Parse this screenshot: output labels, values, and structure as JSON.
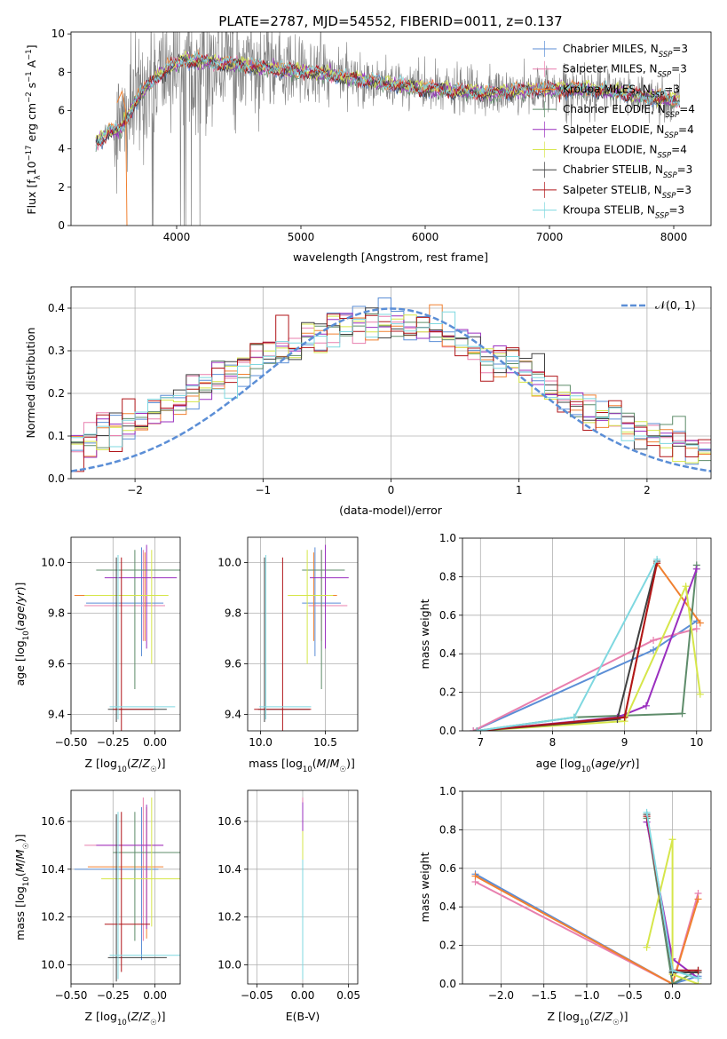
{
  "figure": {
    "title": "PLATE=2787, MJD=54552, FIBERID=0011, z=0.137"
  },
  "colors": {
    "Chabrier MILES": "#5b8ed6",
    "Salpeter MILES": "#e87fae",
    "Kroupa MILES": "#f08030",
    "Chabrier ELODIE": "#5e8c6a",
    "Salpeter ELODIE": "#9a2fbf",
    "Kroupa ELODIE": "#d6e64a",
    "Chabrier STELIB": "#404040",
    "Salpeter STELIB": "#b0161a",
    "Kroupa STELIB": "#7fd8e0",
    "data": "#7f7f7f",
    "gaussian": "#5b8ed6"
  },
  "chart_data": [
    {
      "id": "spectrum",
      "type": "line",
      "xlabel": "wavelength [Angstrom, rest frame]",
      "ylabel": "Flux [f_λ10^-17 erg cm^-2 s^-1 A^-1]",
      "xlim": [
        3150,
        8300
      ],
      "ylim": [
        0,
        10.1
      ],
      "xticks": [
        4000,
        5000,
        6000,
        7000,
        8000
      ],
      "yticks": [
        0,
        2,
        4,
        6,
        8,
        10
      ],
      "grid": false,
      "legend_position": "top-right",
      "legend": [
        {
          "name": "Chabrier MILES",
          "nssp": "3"
        },
        {
          "name": "Salpeter MILES",
          "nssp": "3"
        },
        {
          "name": "Kroupa MILES",
          "nssp": "3"
        },
        {
          "name": "Chabrier ELODIE",
          "nssp": "4"
        },
        {
          "name": "Salpeter ELODIE",
          "nssp": "4"
        },
        {
          "name": "Kroupa ELODIE",
          "nssp": "4"
        },
        {
          "name": "Chabrier STELIB",
          "nssp": "3"
        },
        {
          "name": "Salpeter STELIB",
          "nssp": "3"
        },
        {
          "name": "Kroupa STELIB",
          "nssp": "3"
        }
      ],
      "model_continuum": {
        "x": [
          3350,
          3450,
          3550,
          3650,
          3750,
          3850,
          3950,
          4050,
          4150,
          4300,
          4500,
          4700,
          4900,
          5100,
          5300,
          5500,
          5700,
          5900,
          6100,
          6300,
          6500,
          6700,
          6900,
          7100,
          7300,
          7500,
          7700,
          7900,
          8050
        ],
        "y": [
          4.3,
          4.9,
          5.0,
          6.2,
          7.2,
          7.8,
          8.3,
          8.6,
          8.6,
          8.5,
          8.4,
          8.2,
          8.1,
          8.0,
          7.8,
          7.6,
          7.4,
          7.2,
          7.1,
          7.0,
          6.9,
          7.0,
          7.1,
          7.1,
          7.1,
          7.0,
          6.8,
          6.6,
          6.5
        ]
      }
    },
    {
      "id": "residuals",
      "type": "line",
      "xlabel": "(data-model)/error",
      "ylabel": "Normed distribution",
      "xlim": [
        -2.5,
        2.5
      ],
      "ylim": [
        0,
        0.45
      ],
      "xticks": [
        -2,
        -1,
        0,
        1,
        2
      ],
      "yticks": [
        0.0,
        0.1,
        0.2,
        0.3,
        0.4
      ],
      "grid": true,
      "legend_position": "top-right",
      "gaussian_label": "𝒩(0, 1)",
      "bin_width": 0.1
    },
    {
      "id": "age_vs_Z",
      "type": "scatter",
      "xlabel": "Z [log10(Z/Z☉)]",
      "ylabel": "age  [log10(age/yr)]",
      "xlim": [
        -0.5,
        0.15
      ],
      "ylim": [
        9.335,
        10.1
      ],
      "xticks": [
        -0.5,
        -0.25,
        0.0
      ],
      "xticklabels": [
        "−0.50",
        "−0.25",
        "0.00"
      ],
      "yticks": [
        9.4,
        9.6,
        9.8,
        10.0
      ],
      "points": [
        {
          "model": "Chabrier MILES",
          "x": -0.08,
          "xerr": [
            0.33,
            0.13
          ],
          "y": 9.84,
          "yerr": [
            0.21,
            0.22
          ]
        },
        {
          "model": "Salpeter MILES",
          "x": -0.07,
          "xerr": [
            0.35,
            0.13
          ],
          "y": 9.83,
          "yerr": [
            0.14,
            0.22
          ]
        },
        {
          "model": "Kroupa MILES",
          "x": -0.06,
          "xerr": [
            0.42,
            0.1
          ],
          "y": 9.87,
          "yerr": [
            0.18,
            0.17
          ]
        },
        {
          "model": "Chabrier ELODIE",
          "x": -0.12,
          "xerr": [
            0.23,
            0.3
          ],
          "y": 9.97,
          "yerr": [
            0.47,
            0.08
          ]
        },
        {
          "model": "Salpeter ELODIE",
          "x": -0.05,
          "xerr": [
            0.25,
            0.18
          ],
          "y": 9.94,
          "yerr": [
            0.28,
            0.13
          ]
        },
        {
          "model": "Kroupa ELODIE",
          "x": -0.02,
          "xerr": [
            0.4,
            0.1
          ],
          "y": 9.87,
          "yerr": [
            0.27,
            0.18
          ]
        },
        {
          "model": "Chabrier STELIB",
          "x": -0.23,
          "xerr": [
            0.05,
            0.3
          ],
          "y": 9.42,
          "yerr": [
            0.05,
            0.6
          ]
        },
        {
          "model": "Salpeter STELIB",
          "x": -0.2,
          "xerr": [
            0.05,
            0.19
          ],
          "y": 9.42,
          "yerr": [
            0.2,
            0.6
          ]
        },
        {
          "model": "Kroupa STELIB",
          "x": -0.22,
          "xerr": [
            0.05,
            0.34
          ],
          "y": 9.43,
          "yerr": [
            0.05,
            0.6
          ]
        }
      ]
    },
    {
      "id": "age_vs_mass",
      "type": "scatter",
      "xlabel": "mass [log10(M/M☉)]",
      "ylabel": "",
      "xlim": [
        9.9,
        10.75
      ],
      "ylim": [
        9.335,
        10.1
      ],
      "xticks": [
        10.0,
        10.5
      ],
      "yticks": [
        9.4,
        9.6,
        9.8,
        10.0
      ],
      "points": [
        {
          "model": "Chabrier MILES",
          "x": 10.42,
          "xerr": [
            0.1,
            0.2
          ],
          "y": 9.84,
          "yerr": [
            0.21,
            0.22
          ]
        },
        {
          "model": "Salpeter MILES",
          "x": 10.47,
          "xerr": [
            0.1,
            0.2
          ],
          "y": 9.83,
          "yerr": [
            0.14,
            0.22
          ]
        },
        {
          "model": "Kroupa MILES",
          "x": 10.41,
          "xerr": [
            0.18,
            0.18
          ],
          "y": 9.87,
          "yerr": [
            0.18,
            0.17
          ]
        },
        {
          "model": "Chabrier ELODIE",
          "x": 10.47,
          "xerr": [
            0.15,
            0.18
          ],
          "y": 9.97,
          "yerr": [
            0.47,
            0.08
          ]
        },
        {
          "model": "Salpeter ELODIE",
          "x": 10.5,
          "xerr": [
            0.12,
            0.18
          ],
          "y": 9.94,
          "yerr": [
            0.28,
            0.13
          ]
        },
        {
          "model": "Kroupa ELODIE",
          "x": 10.36,
          "xerr": [
            0.15,
            0.2
          ],
          "y": 9.87,
          "yerr": [
            0.27,
            0.18
          ]
        },
        {
          "model": "Chabrier STELIB",
          "x": 10.03,
          "xerr": [
            0.05,
            0.35
          ],
          "y": 9.42,
          "yerr": [
            0.05,
            0.6
          ]
        },
        {
          "model": "Salpeter STELIB",
          "x": 10.17,
          "xerr": [
            0.22,
            0.22
          ],
          "y": 9.42,
          "yerr": [
            0.2,
            0.6
          ]
        },
        {
          "model": "Kroupa STELIB",
          "x": 10.04,
          "xerr": [
            0.05,
            0.35
          ],
          "y": 9.43,
          "yerr": [
            0.05,
            0.6
          ]
        }
      ]
    },
    {
      "id": "weight_vs_age",
      "type": "line",
      "xlabel": "age  [log10(age/yr)]",
      "ylabel": "mass weight",
      "xlim": [
        6.75,
        10.2
      ],
      "ylim": [
        0,
        1.0
      ],
      "xticks": [
        7,
        8,
        9,
        10
      ],
      "yticks": [
        0.0,
        0.2,
        0.4,
        0.6,
        0.8,
        1.0
      ],
      "grid": true,
      "series": [
        {
          "model": "Chabrier MILES",
          "x": [
            6.9,
            9.4,
            10.0
          ],
          "y": [
            0.0,
            0.42,
            0.57
          ]
        },
        {
          "model": "Salpeter MILES",
          "x": [
            6.9,
            9.4,
            10.0
          ],
          "y": [
            0.0,
            0.47,
            0.53
          ]
        },
        {
          "model": "Kroupa MILES",
          "x": [
            6.95,
            9.0,
            9.45,
            10.05
          ],
          "y": [
            0.0,
            0.07,
            0.87,
            0.56
          ]
        },
        {
          "model": "Chabrier ELODIE",
          "x": [
            6.95,
            8.3,
            9.8,
            10.0
          ],
          "y": [
            0.0,
            0.07,
            0.09,
            0.86
          ]
        },
        {
          "model": "Salpeter ELODIE",
          "x": [
            6.95,
            8.9,
            9.3,
            10.0
          ],
          "y": [
            0.0,
            0.07,
            0.13,
            0.84
          ]
        },
        {
          "model": "Kroupa ELODIE",
          "x": [
            6.95,
            9.0,
            9.85,
            10.05
          ],
          "y": [
            0.0,
            0.05,
            0.75,
            0.19
          ]
        },
        {
          "model": "Chabrier STELIB",
          "x": [
            6.95,
            8.9,
            9.45
          ],
          "y": [
            0.0,
            0.06,
            0.88
          ]
        },
        {
          "model": "Salpeter STELIB",
          "x": [
            6.95,
            9.0,
            9.45
          ],
          "y": [
            0.0,
            0.07,
            0.87
          ]
        },
        {
          "model": "Kroupa STELIB",
          "x": [
            6.95,
            8.3,
            9.45
          ],
          "y": [
            0.0,
            0.07,
            0.89
          ]
        }
      ]
    },
    {
      "id": "mass_vs_Z",
      "type": "scatter",
      "xlabel": "Z [log10(Z/Z☉)]",
      "ylabel": "mass [log10(M/M☉)]",
      "xlim": [
        -0.5,
        0.15
      ],
      "ylim": [
        9.92,
        10.73
      ],
      "xticks": [
        -0.5,
        -0.25,
        0.0
      ],
      "xticklabels": [
        "−0.50",
        "−0.25",
        "0.00"
      ],
      "yticks": [
        10.0,
        10.2,
        10.4,
        10.6
      ],
      "points": [
        {
          "model": "Chabrier MILES",
          "x": -0.08,
          "xerr": [
            0.4,
            0.1
          ],
          "y": 10.4,
          "yerr": [
            0.38,
            0.26
          ]
        },
        {
          "model": "Salpeter MILES",
          "x": -0.07,
          "xerr": [
            0.35,
            0.12
          ],
          "y": 10.5,
          "yerr": [
            0.4,
            0.2
          ]
        },
        {
          "model": "Kroupa MILES",
          "x": -0.05,
          "xerr": [
            0.35,
            0.1
          ],
          "y": 10.41,
          "yerr": [
            0.3,
            0.25
          ]
        },
        {
          "model": "Chabrier ELODIE",
          "x": -0.12,
          "xerr": [
            0.13,
            0.3
          ],
          "y": 10.47,
          "yerr": [
            0.37,
            0.17
          ]
        },
        {
          "model": "Salpeter ELODIE",
          "x": -0.05,
          "xerr": [
            0.3,
            0.1
          ],
          "y": 10.5,
          "yerr": [
            0.35,
            0.17
          ]
        },
        {
          "model": "Kroupa ELODIE",
          "x": -0.02,
          "xerr": [
            0.3,
            0.18
          ],
          "y": 10.36,
          "yerr": [
            0.2,
            0.34
          ]
        },
        {
          "model": "Chabrier STELIB",
          "x": -0.23,
          "xerr": [
            0.05,
            0.3
          ],
          "y": 10.03,
          "yerr": [
            0.1,
            0.6
          ]
        },
        {
          "model": "Salpeter STELIB",
          "x": -0.2,
          "xerr": [
            0.1,
            0.17
          ],
          "y": 10.17,
          "yerr": [
            0.2,
            0.47
          ]
        },
        {
          "model": "Kroupa STELIB",
          "x": -0.22,
          "xerr": [
            0.05,
            0.38
          ],
          "y": 10.04,
          "yerr": [
            0.1,
            0.6
          ]
        }
      ]
    },
    {
      "id": "mass_vs_ebv",
      "type": "scatter",
      "xlabel": "E(B-V)",
      "ylabel": "",
      "xlim": [
        -0.06,
        0.06
      ],
      "ylim": [
        9.92,
        10.73
      ],
      "xticks": [
        -0.05,
        0.0,
        0.05
      ],
      "xticklabels": [
        "−0.05",
        "0.00",
        "0.05"
      ],
      "yticks": [
        10.0,
        10.2,
        10.4,
        10.6
      ],
      "points": [
        {
          "model": "Chabrier MILES",
          "x": 0.0,
          "xerr": [
            0,
            0
          ],
          "y": 10.4,
          "yerr": [
            0.3,
            0.2
          ]
        },
        {
          "model": "Salpeter MILES",
          "x": 0.0,
          "xerr": [
            0,
            0
          ],
          "y": 10.5,
          "yerr": [
            0.2,
            0.2
          ]
        },
        {
          "model": "Kroupa MILES",
          "x": 0.0,
          "xerr": [
            0,
            0
          ],
          "y": 10.41,
          "yerr": [
            0.2,
            0.15
          ]
        },
        {
          "model": "Chabrier ELODIE",
          "x": 0.0,
          "xerr": [
            0,
            0
          ],
          "y": 10.47,
          "yerr": [
            0.37,
            0.2
          ]
        },
        {
          "model": "Salpeter ELODIE",
          "x": 0.0,
          "xerr": [
            0,
            0
          ],
          "y": 10.5,
          "yerr": [
            0.1,
            0.18
          ]
        },
        {
          "model": "Kroupa ELODIE",
          "x": 0.0,
          "xerr": [
            0,
            0
          ],
          "y": 10.36,
          "yerr": [
            0.2,
            0.2
          ]
        },
        {
          "model": "Chabrier STELIB",
          "x": 0.0,
          "xerr": [
            0,
            0
          ],
          "y": 10.03,
          "yerr": [
            0.05,
            0.1
          ]
        },
        {
          "model": "Salpeter STELIB",
          "x": 0.0,
          "xerr": [
            0,
            0
          ],
          "y": 10.17,
          "yerr": [
            0.05,
            0.15
          ]
        },
        {
          "model": "Kroupa STELIB",
          "x": 0.0,
          "xerr": [
            0,
            0
          ],
          "y": 10.04,
          "yerr": [
            0.1,
            0.4
          ]
        }
      ]
    },
    {
      "id": "weight_vs_Z",
      "type": "line",
      "xlabel": "Z [log10(Z/Z☉)]",
      "ylabel": "mass weight",
      "xlim": [
        -2.45,
        0.45
      ],
      "ylim": [
        0,
        1.0
      ],
      "xticks": [
        -2.0,
        -1.5,
        -1.0,
        -0.5,
        0.0
      ],
      "xticklabels": [
        "−2.0",
        "−1.5",
        "−1.0",
        "−0.5",
        "0.0"
      ],
      "yticks": [
        0.0,
        0.2,
        0.4,
        0.6,
        0.8,
        1.0
      ],
      "grid": true,
      "series": [
        {
          "model": "Chabrier MILES",
          "x": [
            -2.3,
            0.0,
            0.3
          ],
          "y": [
            0.57,
            0.0,
            0.04
          ]
        },
        {
          "model": "Salpeter MILES",
          "x": [
            -2.3,
            0.0,
            0.3
          ],
          "y": [
            0.53,
            0.0,
            0.47
          ]
        },
        {
          "model": "Kroupa MILES",
          "x": [
            -2.3,
            0.0,
            0.3
          ],
          "y": [
            0.56,
            0.0,
            0.44
          ]
        },
        {
          "model": "Chabrier ELODIE",
          "x": [
            -0.3,
            0.0,
            0.3
          ],
          "y": [
            0.86,
            0.0,
            0.07
          ]
        },
        {
          "model": "Salpeter ELODIE",
          "x": [
            -0.3,
            0.0,
            0.3
          ],
          "y": [
            0.84,
            0.13,
            0.03
          ]
        },
        {
          "model": "Kroupa ELODIE",
          "x": [
            -0.3,
            0.0,
            0.0,
            0.3
          ],
          "y": [
            0.19,
            0.75,
            0.05,
            0.0
          ]
        },
        {
          "model": "Chabrier STELIB",
          "x": [
            -0.3,
            0.0,
            0.3
          ],
          "y": [
            0.88,
            0.06,
            0.06
          ]
        },
        {
          "model": "Salpeter STELIB",
          "x": [
            -0.3,
            0.0,
            0.3
          ],
          "y": [
            0.87,
            0.07,
            0.07
          ]
        },
        {
          "model": "Kroupa STELIB",
          "x": [
            -0.3,
            0.0,
            0.3
          ],
          "y": [
            0.89,
            0.07,
            0.03
          ]
        }
      ]
    }
  ]
}
